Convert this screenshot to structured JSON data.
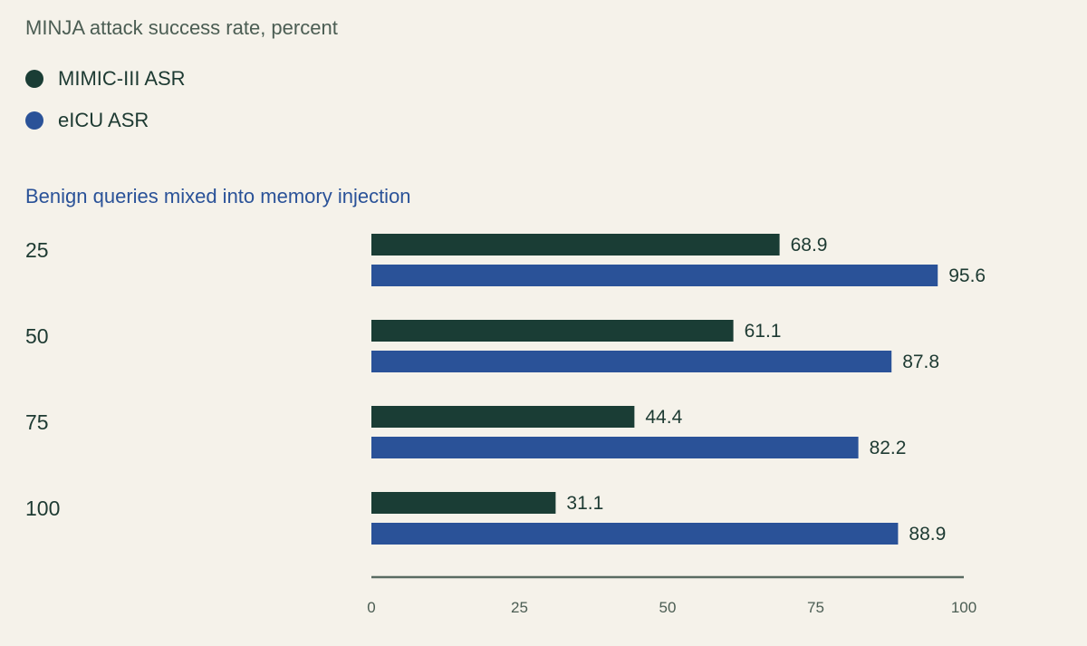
{
  "chart_data": {
    "type": "bar",
    "orientation": "horizontal",
    "title": "MINJA attack success rate, percent",
    "subtitle": "Benign queries mixed into memory injection",
    "categories": [
      "25",
      "50",
      "75",
      "100"
    ],
    "series": [
      {
        "name": "MIMIC-III ASR",
        "color": "#1a3d35",
        "values": [
          68.9,
          61.1,
          44.4,
          31.1
        ]
      },
      {
        "name": "eICU ASR",
        "color": "#2a5298",
        "values": [
          95.6,
          87.8,
          82.2,
          88.9
        ]
      }
    ],
    "xlim": [
      0,
      100
    ],
    "xticks": [
      0,
      25,
      50,
      75,
      100
    ],
    "grid": false,
    "legend_position": "top-left"
  }
}
